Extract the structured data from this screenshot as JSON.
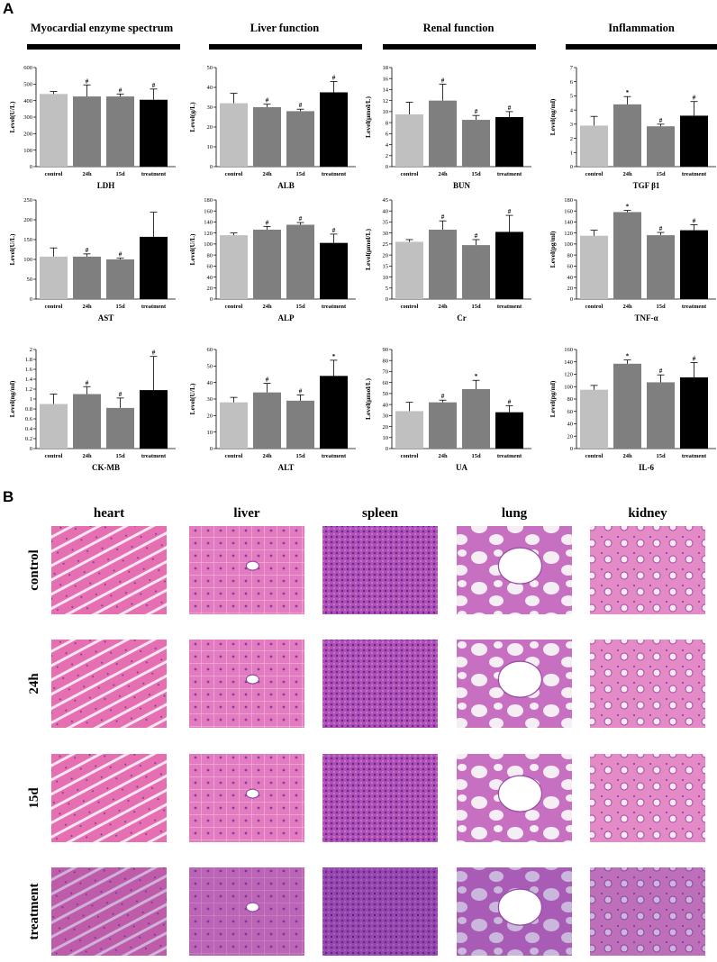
{
  "panel_labels": {
    "a": "A",
    "b": "B"
  },
  "sections": [
    "Myocardial enzyme spectrum",
    "Liver function",
    "Renal function",
    "Inflammation"
  ],
  "chart_data": [
    {
      "type": "bar",
      "xlabel": "LDH",
      "ylabel": "Level(U/L)",
      "ylim": [
        0,
        600
      ],
      "yticks": [
        0,
        100,
        200,
        300,
        400,
        500,
        600
      ],
      "categories": [
        "control",
        "24h",
        "15d",
        "treatment"
      ],
      "values": [
        440,
        425,
        425,
        405
      ],
      "errors": [
        15,
        70,
        15,
        65
      ],
      "marks": [
        "",
        "#",
        "#",
        "#"
      ],
      "colors": [
        "#c0c0c0",
        "#7f7f7f",
        "#7f7f7f",
        "#000000"
      ]
    },
    {
      "type": "bar",
      "xlabel": "ALB",
      "ylabel": "Level(g/L)",
      "ylim": [
        0,
        50
      ],
      "yticks": [
        0,
        10,
        20,
        30,
        40,
        50
      ],
      "categories": [
        "control",
        "24h",
        "15d",
        "treatment"
      ],
      "values": [
        32,
        30,
        28,
        37.5
      ],
      "errors": [
        5,
        1.5,
        1,
        5.5
      ],
      "marks": [
        "",
        "#",
        "#",
        "#"
      ],
      "colors": [
        "#c0c0c0",
        "#7f7f7f",
        "#7f7f7f",
        "#000000"
      ]
    },
    {
      "type": "bar",
      "xlabel": "BUN",
      "ylabel": "Level(μmol/L)",
      "ylim": [
        0,
        18
      ],
      "yticks": [
        0,
        2,
        4,
        6,
        8,
        10,
        12,
        14,
        16,
        18
      ],
      "categories": [
        "control",
        "24h",
        "15d",
        "treatment"
      ],
      "values": [
        9.5,
        12,
        8.5,
        9
      ],
      "errors": [
        2.2,
        3,
        0.8,
        1
      ],
      "marks": [
        "",
        "#",
        "#",
        "#"
      ],
      "colors": [
        "#c0c0c0",
        "#7f7f7f",
        "#7f7f7f",
        "#000000"
      ]
    },
    {
      "type": "bar",
      "xlabel": "TGF β1",
      "ylabel": "Level(ng/ml)",
      "ylim": [
        0,
        7
      ],
      "yticks": [
        0,
        1,
        2,
        3,
        4,
        5,
        6,
        7
      ],
      "categories": [
        "control",
        "24h",
        "15d",
        "treatment"
      ],
      "values": [
        2.9,
        4.4,
        2.85,
        3.6
      ],
      "errors": [
        0.65,
        0.55,
        0.15,
        1
      ],
      "marks": [
        "",
        "*",
        "#",
        "#"
      ],
      "colors": [
        "#c0c0c0",
        "#7f7f7f",
        "#7f7f7f",
        "#000000"
      ]
    },
    {
      "type": "bar",
      "xlabel": "AST",
      "ylabel": "Level(U/L)",
      "ylim": [
        0,
        250
      ],
      "yticks": [
        0,
        50,
        100,
        150,
        200,
        250
      ],
      "categories": [
        "control",
        "24h",
        "15d",
        "treatment"
      ],
      "values": [
        107,
        107,
        100,
        157
      ],
      "errors": [
        22,
        7,
        3,
        62
      ],
      "marks": [
        "",
        "#",
        "#",
        ""
      ],
      "colors": [
        "#c0c0c0",
        "#7f7f7f",
        "#7f7f7f",
        "#000000"
      ]
    },
    {
      "type": "bar",
      "xlabel": "ALP",
      "ylabel": "Level(U/L)",
      "ylim": [
        0,
        180
      ],
      "yticks": [
        0,
        20,
        40,
        60,
        80,
        100,
        120,
        140,
        160,
        180
      ],
      "categories": [
        "control",
        "24h",
        "15d",
        "treatment"
      ],
      "values": [
        116,
        126,
        135,
        102
      ],
      "errors": [
        4,
        6,
        4,
        16
      ],
      "marks": [
        "",
        "#",
        "#",
        "#"
      ],
      "colors": [
        "#c0c0c0",
        "#7f7f7f",
        "#7f7f7f",
        "#000000"
      ]
    },
    {
      "type": "bar",
      "xlabel": "Cr",
      "ylabel": "Level(μmol/L)",
      "ylim": [
        0,
        45
      ],
      "yticks": [
        0,
        5,
        10,
        15,
        20,
        25,
        30,
        35,
        40,
        45
      ],
      "categories": [
        "control",
        "24h",
        "15d",
        "treatment"
      ],
      "values": [
        26,
        31.5,
        24.5,
        30.5
      ],
      "errors": [
        1,
        4,
        2.5,
        7.5
      ],
      "marks": [
        "",
        "#",
        "#",
        "#"
      ],
      "colors": [
        "#c0c0c0",
        "#7f7f7f",
        "#7f7f7f",
        "#000000"
      ]
    },
    {
      "type": "bar",
      "xlabel": "TNF-α",
      "ylabel": "Level(pg/ml)",
      "ylim": [
        0,
        180
      ],
      "yticks": [
        0,
        20,
        40,
        60,
        80,
        100,
        120,
        140,
        160,
        180
      ],
      "categories": [
        "control",
        "24h",
        "15d",
        "treatment"
      ],
      "values": [
        115,
        158,
        116,
        125
      ],
      "errors": [
        10,
        3,
        5,
        10
      ],
      "marks": [
        "",
        "*",
        "#",
        "#"
      ],
      "colors": [
        "#c0c0c0",
        "#7f7f7f",
        "#7f7f7f",
        "#000000"
      ]
    },
    {
      "type": "bar",
      "xlabel": "CK-MB",
      "ylabel": "Level(ng/ml)",
      "ylim": [
        0,
        2.0
      ],
      "yticks": [
        0,
        0.2,
        0.4,
        0.6,
        0.8,
        1.0,
        1.2,
        1.4,
        1.6,
        1.8,
        2.0
      ],
      "categories": [
        "control",
        "24h",
        "15d",
        "treatment"
      ],
      "values": [
        0.9,
        1.1,
        0.82,
        1.18
      ],
      "errors": [
        0.2,
        0.15,
        0.2,
        0.68
      ],
      "marks": [
        "",
        "#",
        "#",
        "#"
      ],
      "colors": [
        "#c0c0c0",
        "#7f7f7f",
        "#7f7f7f",
        "#000000"
      ]
    },
    {
      "type": "bar",
      "xlabel": "ALT",
      "ylabel": "Level(U/L)",
      "ylim": [
        0,
        60
      ],
      "yticks": [
        0,
        10,
        20,
        30,
        40,
        50,
        60
      ],
      "categories": [
        "control",
        "24h",
        "15d",
        "treatment"
      ],
      "values": [
        28,
        34,
        29,
        44
      ],
      "errors": [
        3,
        5.5,
        3.5,
        9.5
      ],
      "marks": [
        "",
        "#",
        "#",
        "*"
      ],
      "colors": [
        "#c0c0c0",
        "#7f7f7f",
        "#7f7f7f",
        "#000000"
      ]
    },
    {
      "type": "bar",
      "xlabel": "UA",
      "ylabel": "Level(μmol/L)",
      "ylim": [
        0,
        90
      ],
      "yticks": [
        0,
        10,
        20,
        30,
        40,
        50,
        60,
        70,
        80,
        90
      ],
      "categories": [
        "control",
        "24h",
        "15d",
        "treatment"
      ],
      "values": [
        34,
        42,
        54,
        33
      ],
      "errors": [
        8,
        2,
        8,
        6
      ],
      "marks": [
        "",
        "#",
        "*",
        "#"
      ],
      "colors": [
        "#c0c0c0",
        "#7f7f7f",
        "#7f7f7f",
        "#000000"
      ]
    },
    {
      "type": "bar",
      "xlabel": "IL-6",
      "ylabel": "Level(pg/ml)",
      "ylim": [
        0,
        160
      ],
      "yticks": [
        0,
        20,
        40,
        60,
        80,
        100,
        120,
        140,
        160
      ],
      "categories": [
        "control",
        "24h",
        "15d",
        "treatment"
      ],
      "values": [
        95,
        137,
        107,
        115
      ],
      "errors": [
        7,
        6,
        12,
        24
      ],
      "marks": [
        "",
        "*",
        "#",
        "#"
      ],
      "colors": [
        "#c0c0c0",
        "#7f7f7f",
        "#7f7f7f",
        "#000000"
      ]
    }
  ],
  "histology": {
    "columns": [
      "heart",
      "liver",
      "spleen",
      "lung",
      "kidney"
    ],
    "rows": [
      "control",
      "24h",
      "15d",
      "treatment"
    ]
  }
}
